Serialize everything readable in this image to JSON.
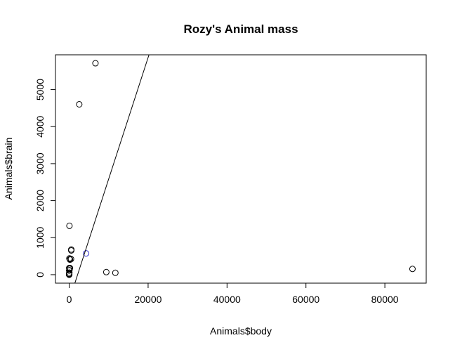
{
  "chart_data": {
    "type": "scatter",
    "title": "Rozy's Animal mass",
    "xlabel": "Animals$body",
    "ylabel": "Animals$brain",
    "xlim": [
      -3479,
      90479
    ],
    "ylim": [
      -228.84,
      5940.84
    ],
    "x_ticks": [
      {
        "value": 0,
        "label": "0"
      },
      {
        "value": 20000,
        "label": "20000"
      },
      {
        "value": 40000,
        "label": "40000"
      },
      {
        "value": 60000,
        "label": "60000"
      },
      {
        "value": 80000,
        "label": "80000"
      }
    ],
    "y_ticks": [
      {
        "value": 0,
        "label": "0"
      },
      {
        "value": 1000,
        "label": "1000"
      },
      {
        "value": 2000,
        "label": "2000"
      },
      {
        "value": 3000,
        "label": "3000"
      },
      {
        "value": 4000,
        "label": "4000"
      },
      {
        "value": 5000,
        "label": "5000"
      }
    ],
    "grid": false,
    "series": [
      {
        "color": "#000000",
        "points": [
          {
            "x": 1.35,
            "y": 8.1
          },
          {
            "x": 465,
            "y": 423
          },
          {
            "x": 36.33,
            "y": 119.5
          },
          {
            "x": 27.66,
            "y": 115
          },
          {
            "x": 1.04,
            "y": 5.5
          },
          {
            "x": 11700,
            "y": 50
          },
          {
            "x": 2547,
            "y": 4603
          },
          {
            "x": 187.1,
            "y": 419
          },
          {
            "x": 521,
            "y": 655
          },
          {
            "x": 10,
            "y": 115
          },
          {
            "x": 3.3,
            "y": 25.6
          },
          {
            "x": 529,
            "y": 680
          },
          {
            "x": 207,
            "y": 406
          },
          {
            "x": 62,
            "y": 1320
          },
          {
            "x": 6654,
            "y": 5712
          },
          {
            "x": 9400,
            "y": 70
          },
          {
            "x": 6.8,
            "y": 179
          },
          {
            "x": 35,
            "y": 56
          },
          {
            "x": 0.12,
            "y": 1
          },
          {
            "x": 0.023,
            "y": 0.4
          },
          {
            "x": 2.5,
            "y": 12.1
          },
          {
            "x": 55.5,
            "y": 175
          },
          {
            "x": 100,
            "y": 157
          },
          {
            "x": 52.16,
            "y": 440
          },
          {
            "x": 87000,
            "y": 154.5
          },
          {
            "x": 0.28,
            "y": 1.9
          },
          {
            "x": 0.122,
            "y": 3
          },
          {
            "x": 192,
            "y": 180
          }
        ]
      },
      {
        "color": "#3333cc",
        "points": [
          {
            "x": 4278.44,
            "y": 574.52
          }
        ]
      }
    ],
    "regression_line": {
      "color": "#000000",
      "intercept": -700,
      "slope": 0.3284
    }
  }
}
